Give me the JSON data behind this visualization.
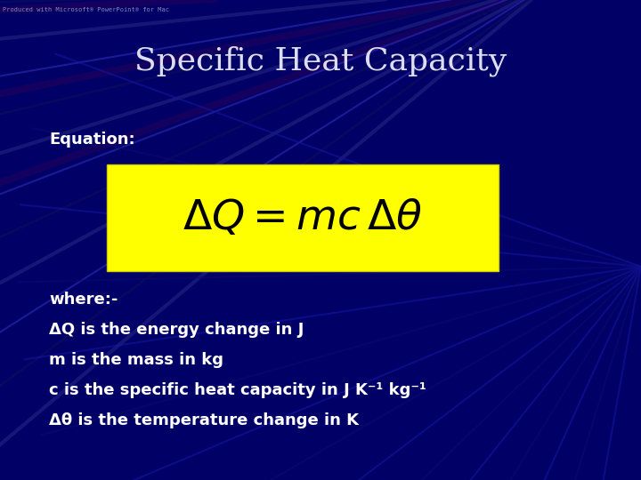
{
  "title": "Specific Heat Capacity",
  "title_color": "#DDDDF0",
  "title_fontsize": 26,
  "equation_label": "Equation:",
  "equation_label_color": "#FFFFFF",
  "equation_label_fontsize": 13,
  "equation_tex": "$\\Delta Q = mc\\, \\Delta\\theta$",
  "equation_box_color": "#FFFF00",
  "equation_text_color": "#000000",
  "equation_fontsize": 34,
  "body_lines": [
    "where:-",
    "ΔQ is the energy change in J",
    "m is the mass in kg",
    "c is the specific heat capacity in J K⁻¹ kg⁻¹",
    "Δθ is the temperature change in K"
  ],
  "body_color": "#FFFFFF",
  "body_fontsize": 13,
  "bg_color": "#000066",
  "watermark": "Produced with Microsoft® PowerPoint® for Mac"
}
